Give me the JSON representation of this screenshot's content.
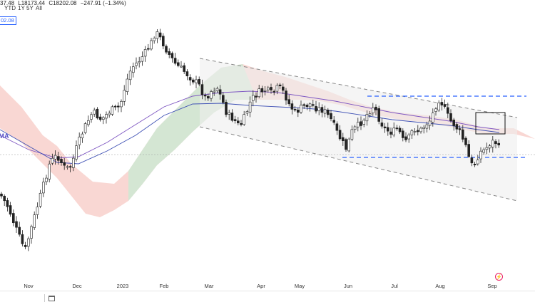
{
  "header": {
    "ohlc_text": [
      "37.48",
      "L18173.44",
      "C18202.08",
      "−247.91 (−1.34%)"
    ],
    "price_tag": "02.08",
    "dma_label": "DMA"
  },
  "range_buttons": [
    "YTD",
    "1Y",
    "5Y",
    "All"
  ],
  "icons": {
    "calendar": "calendar-icon",
    "logo": "tradingview-logo-icon"
  },
  "colors": {
    "up": "#222222",
    "down": "#222222",
    "cloud_bear": "#f7c9c4",
    "cloud_bull": "#cfe8d3",
    "dma_fast": "#7e57c2",
    "dma_slow": "#3f51b5",
    "support": "#2962ff",
    "trend": "#888888",
    "current": "#9e9e9e"
  },
  "chart_data": {
    "type": "candlestick",
    "title": "",
    "x_axis": {
      "tick_labels": [
        "Nov",
        "Dec",
        "2023",
        "Feb",
        "Mar",
        "Apr",
        "May",
        "Jun",
        "Jul",
        "Aug",
        "Sep"
      ]
    },
    "last_close": 18202.08,
    "change": -247.91,
    "change_pct": -1.34,
    "grid": false,
    "annotations": [
      "descending trend channel",
      "horizontal support level",
      "horizontal resistance level",
      "highlight box near latest bars"
    ],
    "indicators": [
      "Ichimoku cloud",
      "moving averages (DMA)"
    ]
  }
}
